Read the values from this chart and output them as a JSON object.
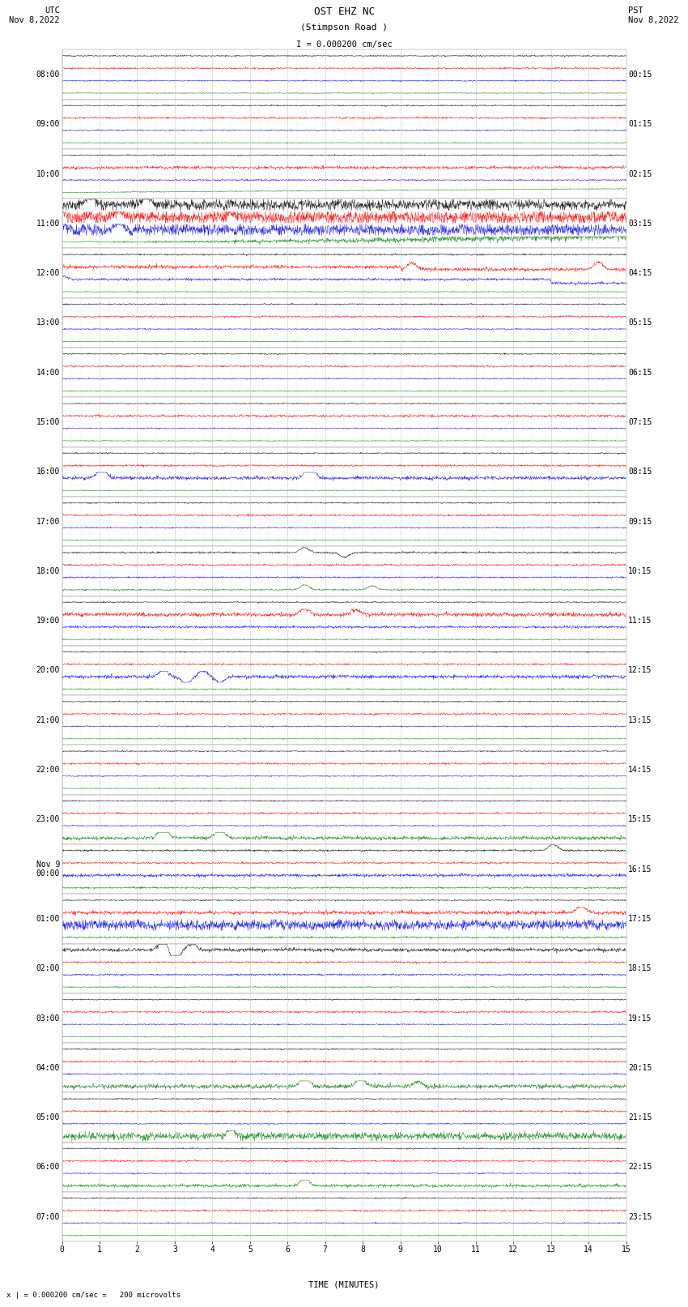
{
  "title_line1": "OST EHZ NC",
  "title_line2": "(Stimpson Road )",
  "scale_label": "I = 0.000200 cm/sec",
  "bottom_label": "x | = 0.000200 cm/sec =   200 microvolts",
  "utc_label": "UTC\nNov 8,2022",
  "pst_label": "PST\nNov 8,2022",
  "xlabel": "TIME (MINUTES)",
  "left_times": [
    "08:00",
    "09:00",
    "10:00",
    "11:00",
    "12:00",
    "13:00",
    "14:00",
    "15:00",
    "16:00",
    "17:00",
    "18:00",
    "19:00",
    "20:00",
    "21:00",
    "22:00",
    "23:00",
    "Nov 9\n00:00",
    "01:00",
    "02:00",
    "03:00",
    "04:00",
    "05:00",
    "06:00",
    "07:00"
  ],
  "right_times": [
    "00:15",
    "01:15",
    "02:15",
    "03:15",
    "04:15",
    "05:15",
    "06:15",
    "07:15",
    "08:15",
    "09:15",
    "10:15",
    "11:15",
    "12:15",
    "13:15",
    "14:15",
    "15:15",
    "16:15",
    "17:15",
    "18:15",
    "19:15",
    "20:15",
    "21:15",
    "22:15",
    "23:15"
  ],
  "n_rows": 24,
  "n_points": 1800,
  "x_min": 0,
  "x_max": 15,
  "bg_color": "#ffffff",
  "grid_color": "#aaaaaa",
  "trace_colors": [
    "black",
    "red",
    "blue",
    "green"
  ],
  "title_fontsize": 9,
  "label_fontsize": 7.5,
  "tick_fontsize": 7
}
